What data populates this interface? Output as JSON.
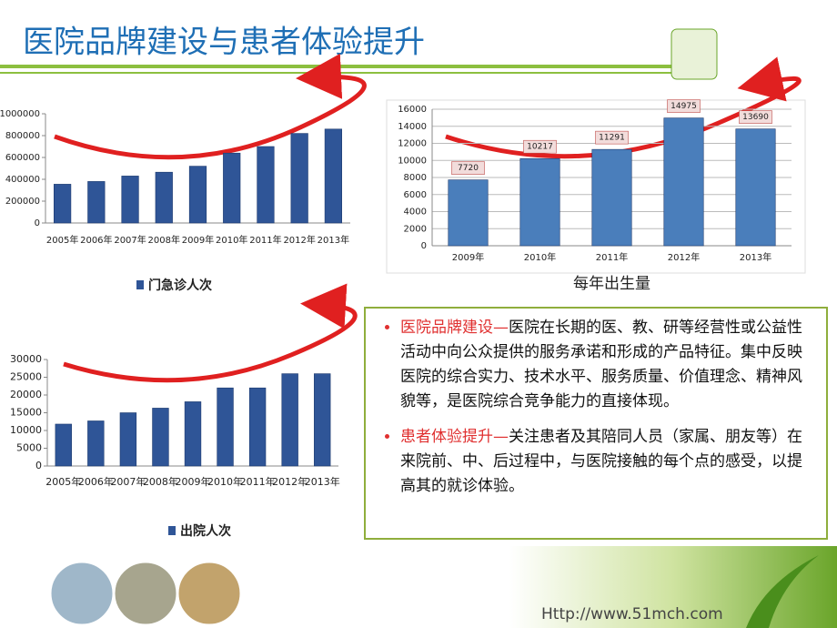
{
  "title": "医院品牌建设与患者体验提升",
  "chart_data": [
    {
      "type": "bar",
      "categories": [
        "2005年",
        "2006年",
        "2007年",
        "2008年",
        "2009年",
        "2010年",
        "2011年",
        "2012年",
        "2013年"
      ],
      "series": [
        {
          "name": "门急诊人次",
          "color": "#2f5597",
          "values": [
            355000,
            380000,
            430000,
            465000,
            520000,
            640000,
            700000,
            820000,
            860000
          ]
        }
      ],
      "ylim": [
        0,
        1000000
      ],
      "yticks": [
        0,
        200000,
        400000,
        600000,
        800000,
        1000000
      ],
      "grid": false,
      "legend": "bottom"
    },
    {
      "type": "bar",
      "title": "每年出生量",
      "categories": [
        "2009年",
        "2010年",
        "2011年",
        "2012年",
        "2013年"
      ],
      "values": [
        7720,
        10217,
        11291,
        14975,
        13690
      ],
      "color": "#4a7ebb",
      "ylim": [
        0,
        16000
      ],
      "yticks": [
        0,
        2000,
        4000,
        6000,
        8000,
        10000,
        12000,
        14000,
        16000
      ],
      "grid": true,
      "data_labels": true
    },
    {
      "type": "bar",
      "categories": [
        "2005年",
        "2006年",
        "2007年",
        "2008年",
        "2009年",
        "2010年",
        "2011年",
        "2012年",
        "2013年"
      ],
      "series": [
        {
          "name": "出院人次",
          "color": "#2f5597",
          "values": [
            11800,
            12700,
            15000,
            16300,
            18100,
            22000,
            22000,
            26000,
            26000
          ]
        }
      ],
      "ylim": [
        0,
        30000
      ],
      "yticks": [
        0,
        5000,
        10000,
        15000,
        20000,
        25000,
        30000
      ],
      "grid": false,
      "legend": "bottom"
    }
  ],
  "text_box": {
    "items": [
      {
        "heading": "医院品牌建设—",
        "body": "医院在长期的医、教、研等经营性或公益性活动中向公众提供的服务承诺和形成的产品特征。集中反映医院的综合实力、技术水平、服务质量、价值理念、精神风貌等，是医院综合竞争能力的直接体现。"
      },
      {
        "heading": "患者体验提升—",
        "body": "关注患者及其陪同人员（家属、朋友等）在来院前、中、后过程中，与医院接触的每个点的感受，以提高其的就诊体验。"
      }
    ]
  },
  "footer_url": "Http://www.51mch.com"
}
